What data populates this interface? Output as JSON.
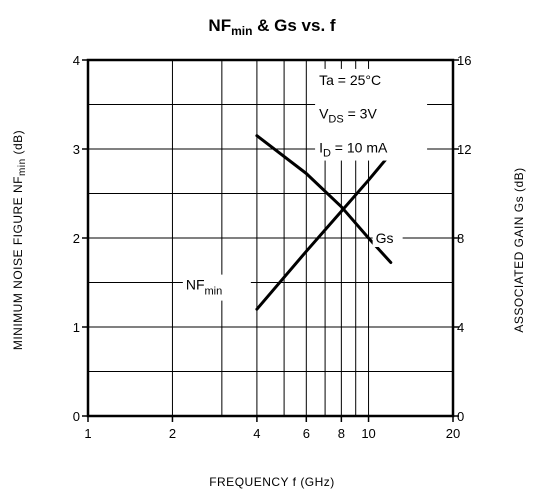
{
  "chart_data": {
    "type": "line",
    "title": {
      "main": "NF",
      "sub": "min",
      "rest": " & Gs vs. f"
    },
    "xlabel": "FREQUENCY  f (GHz)",
    "ylabel_left": {
      "main": "MINIMUM NOISE FIGURE NF",
      "sub": "min",
      "rest": " (dB)"
    },
    "ylabel_right": "ASSOCIATED  GAIN  Gs (dB)",
    "x_scale": "log",
    "xlim": [
      1,
      20
    ],
    "x_ticks": [
      1,
      2,
      4,
      6,
      8,
      10,
      20
    ],
    "ylim_left": [
      0,
      4
    ],
    "y_ticks_left": [
      0,
      1,
      2,
      3,
      4
    ],
    "ylim_right": [
      0,
      16
    ],
    "y_ticks_right": [
      0,
      4,
      8,
      12,
      16
    ],
    "grid": true,
    "conditions": [
      {
        "main": "Ta",
        "sub": "",
        "rest": " = 25°C"
      },
      {
        "main": "V",
        "sub": "DS",
        "rest": " = 3V"
      },
      {
        "main": "I",
        "sub": "D",
        "rest": " = 10 mA"
      }
    ],
    "series": [
      {
        "name": "NF",
        "name_sub": "min",
        "axis": "left",
        "x": [
          4,
          6,
          8,
          10,
          12
        ],
        "y": [
          1.2,
          1.85,
          2.3,
          2.65,
          2.95
        ]
      },
      {
        "name": "Gs",
        "name_sub": "",
        "axis": "right",
        "x": [
          4,
          6,
          8,
          10,
          12
        ],
        "y": [
          12.6,
          10.9,
          9.4,
          8.0,
          6.9
        ]
      }
    ],
    "colors": {
      "line": "#000000",
      "grid": "#000000"
    }
  }
}
